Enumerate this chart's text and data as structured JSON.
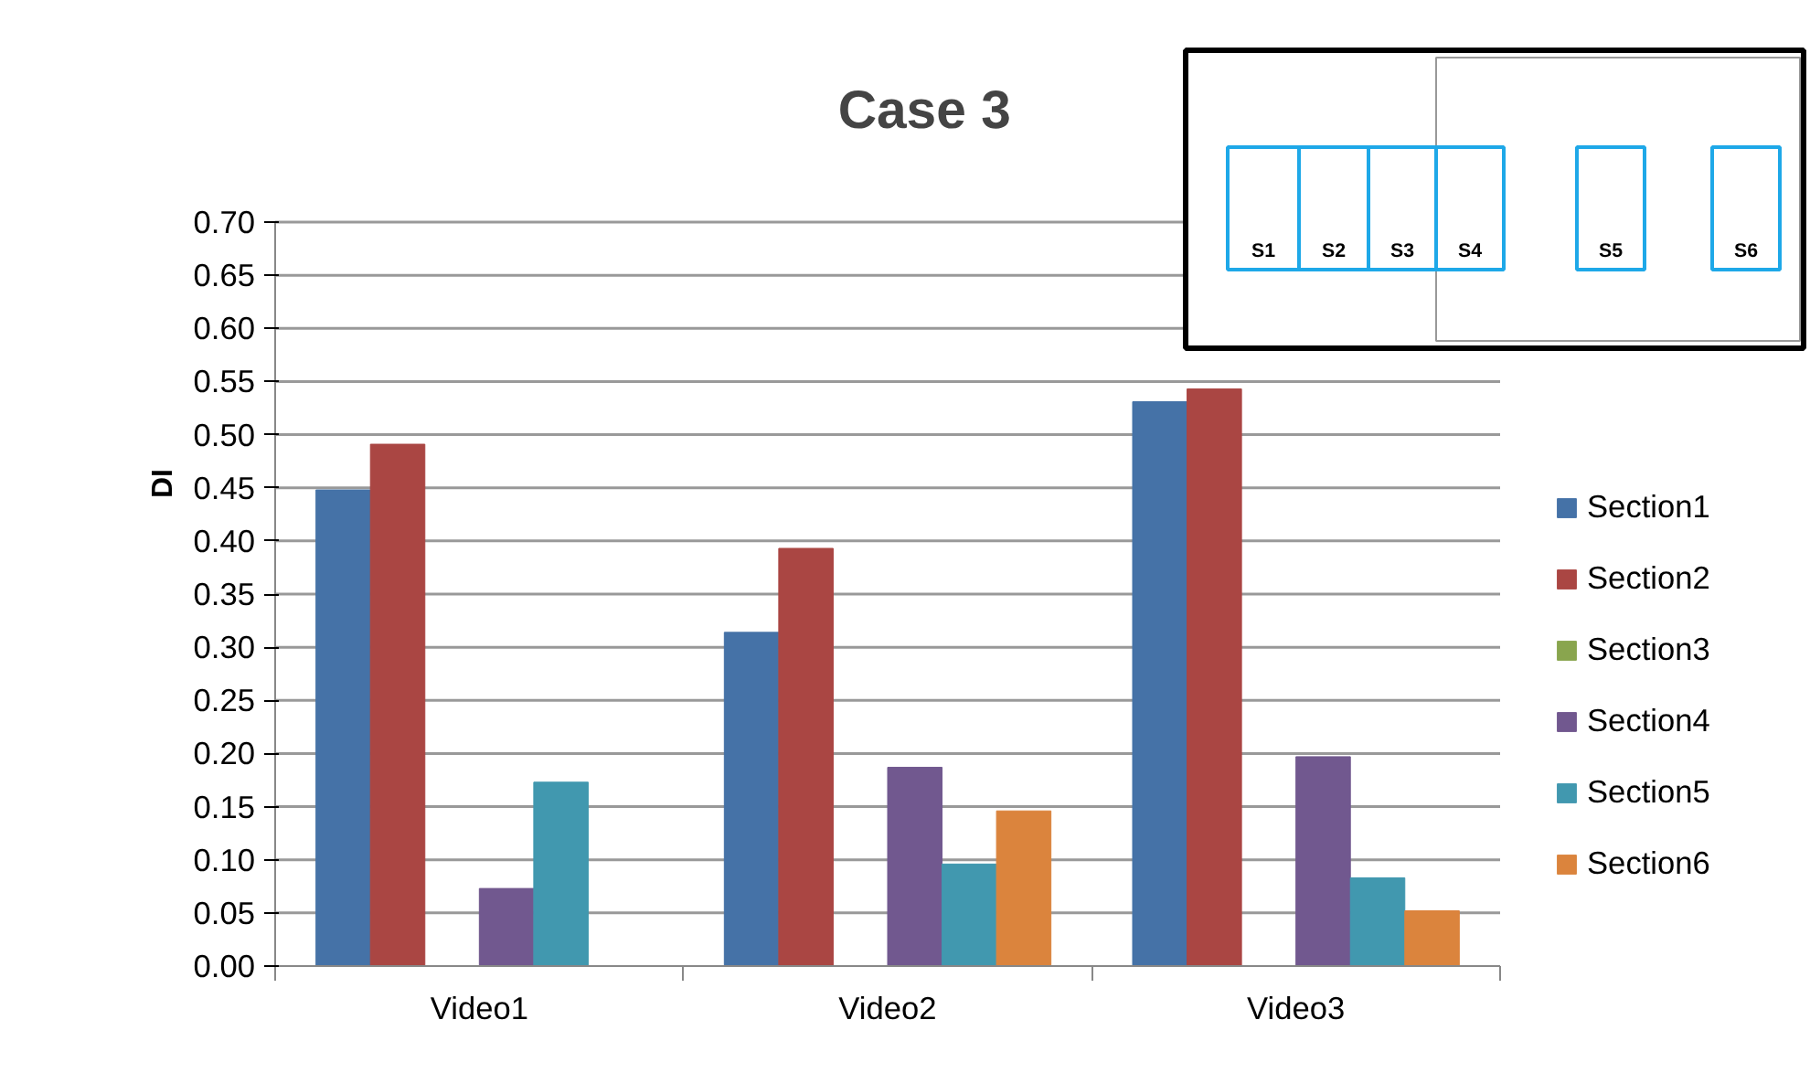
{
  "chart_data": {
    "type": "bar",
    "title": "Case 3",
    "ylabel": "DI",
    "categories": [
      "Video1",
      "Video2",
      "Video3"
    ],
    "series": [
      {
        "name": "Section1",
        "color": "#4572a7",
        "values": [
          0.448,
          0.314,
          0.531
        ]
      },
      {
        "name": "Section2",
        "color": "#aa4643",
        "values": [
          0.491,
          0.393,
          0.543
        ]
      },
      {
        "name": "Section3",
        "color": "#89a54e",
        "values": [
          0,
          0,
          0
        ]
      },
      {
        "name": "Section4",
        "color": "#71588f",
        "values": [
          0.073,
          0.187,
          0.197
        ]
      },
      {
        "name": "Section5",
        "color": "#4198af",
        "values": [
          0.173,
          0.096,
          0.083
        ]
      },
      {
        "name": "Section6",
        "color": "#db843d",
        "values": [
          0,
          0.146,
          0.052
        ]
      }
    ],
    "ylim": [
      0,
      0.7
    ],
    "yticks": [
      {
        "value": 0,
        "label": "0.00"
      },
      {
        "value": 0.05,
        "label": "0.05"
      },
      {
        "value": 0.1,
        "label": "0.10"
      },
      {
        "value": 0.15,
        "label": "0.15"
      },
      {
        "value": 0.2,
        "label": "0.20"
      },
      {
        "value": 0.25,
        "label": "0.25"
      },
      {
        "value": 0.3,
        "label": "0.30"
      },
      {
        "value": 0.35,
        "label": "0.35"
      },
      {
        "value": 0.4,
        "label": "0.40"
      },
      {
        "value": 0.45,
        "label": "0.45"
      },
      {
        "value": 0.5,
        "label": "0.50"
      },
      {
        "value": 0.55,
        "label": "0.55"
      },
      {
        "value": 0.6,
        "label": "0.60"
      },
      {
        "value": 0.65,
        "label": "0.65"
      },
      {
        "value": 0.7,
        "label": "0.70"
      }
    ],
    "grid": "y",
    "legend": "right",
    "annotations": [
      "S1",
      "S2",
      "S3",
      "S4",
      "S5",
      "S6"
    ]
  }
}
